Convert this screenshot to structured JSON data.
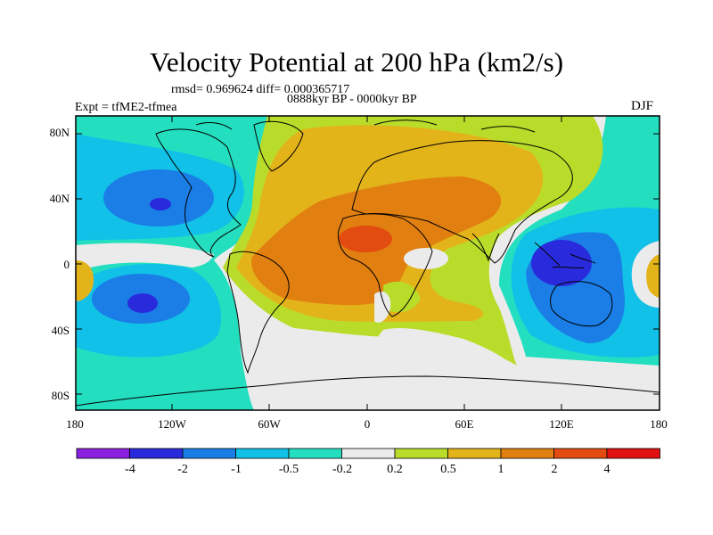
{
  "title": "Velocity Potential at 200 hPa (km2/s)",
  "stats": "rmsd= 0.969624 diff= 0.000365717",
  "period": "0888kyr BP - 0000kyr BP",
  "experiment": "Expt = tfME2-tfmea",
  "season": "DJF",
  "lat_labels": [
    "80N",
    "40N",
    "0",
    "40S",
    "80S"
  ],
  "lon_labels": [
    "180",
    "120W",
    "60W",
    "0",
    "60E",
    "120E",
    "180"
  ],
  "colorbar": {
    "labels": [
      "-4",
      "-2",
      "-1",
      "-0.5",
      "-0.2",
      "0.2",
      "0.5",
      "1",
      "2",
      "4"
    ],
    "colors": [
      "#8a1fe0",
      "#2a2add",
      "#1a7ee6",
      "#12c1e8",
      "#24dec0",
      "#ebebeb",
      "#b9dc2a",
      "#e3b31a",
      "#e17f10",
      "#e34c10",
      "#e21010"
    ]
  },
  "palette": {
    "ocean_neutral": "#ebebeb",
    "blue_deep": "#2a2add",
    "blue": "#1a7ee6",
    "cyan": "#12c1e8",
    "teal": "#24dec0",
    "lime": "#b9dc2a",
    "gold": "#e3b31a",
    "orange": "#e17f10",
    "redorange": "#e34c10"
  }
}
